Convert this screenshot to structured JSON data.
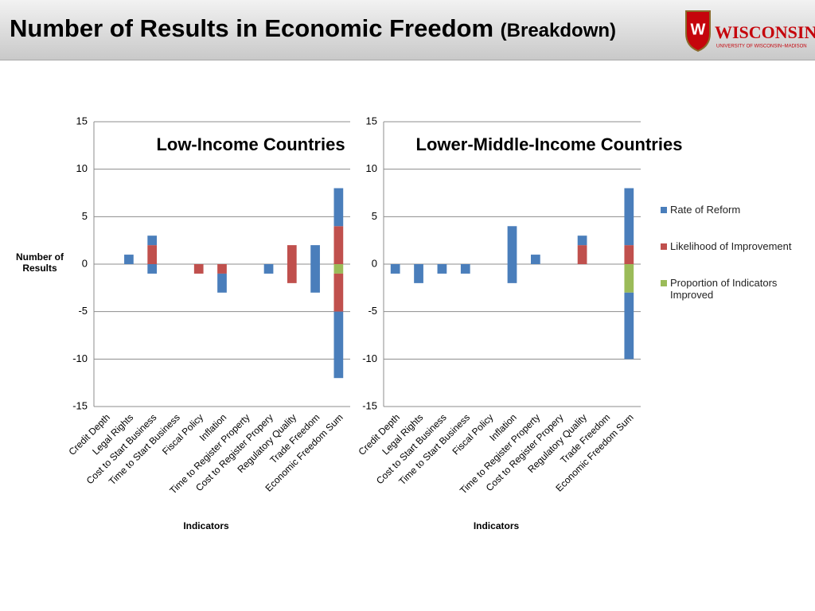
{
  "header": {
    "title": "Number of Results in Economic Freedom",
    "subtitle": "(Breakdown)",
    "logo_text": "WISCONSIN",
    "logo_subtext": "UNIVERSITY OF WISCONSIN–MADISON"
  },
  "chart_data": [
    {
      "type": "bar",
      "stacked": true,
      "title": "Low-Income Countries",
      "x_label": "Indicators",
      "y_label": "Number of Results",
      "categories": [
        "Credit Depth",
        "Legal Rights",
        "Cost to Start Business",
        "Time to Start Business",
        "Fiscal Policy",
        "Inflation",
        "Time to Register Property",
        "Cost to Register Propery",
        "Regulatory Quality",
        "Trade Freedom",
        "Economic Freedom Sum"
      ],
      "series": [
        {
          "name": "Rate of Reform",
          "color": "#4a7ebb",
          "values": [
            0,
            1,
            1,
            0,
            0,
            0,
            0,
            0,
            0,
            2,
            4
          ],
          "negative": [
            0,
            0,
            -1,
            0,
            0,
            -2,
            0,
            -1,
            0,
            -3,
            -7
          ]
        },
        {
          "name": "Likelihood of Improvement",
          "color": "#c0504d",
          "values": [
            0,
            0,
            2,
            0,
            0,
            0,
            0,
            0,
            2,
            0,
            4
          ],
          "negative": [
            0,
            0,
            0,
            0,
            -1,
            -1,
            0,
            0,
            -2,
            0,
            -4
          ]
        },
        {
          "name": "Proportion of Indicators Improved",
          "color": "#9bbb59",
          "values": [
            0,
            0,
            0,
            0,
            0,
            0,
            0,
            0,
            0,
            0,
            0
          ],
          "negative": [
            0,
            0,
            0,
            0,
            0,
            0,
            0,
            0,
            0,
            0,
            -1
          ]
        }
      ],
      "ylim": [
        -15,
        15
      ],
      "yticks": [
        -15,
        -10,
        -5,
        0,
        5,
        10,
        15
      ],
      "grid": true,
      "legend": false
    },
    {
      "type": "bar",
      "stacked": true,
      "title": "Lower-Middle-Income Countries",
      "x_label": "Indicators",
      "categories": [
        "Credit Depth",
        "Legal Rights",
        "Cost to Start Business",
        "Time to Start Business",
        "Fiscal Policy",
        "Inflation",
        "Time to Register Property",
        "Cost to Register Propery",
        "Regulatory Quality",
        "Trade Freedom",
        "Economic Freedom Sum"
      ],
      "series": [
        {
          "name": "Rate of Reform",
          "color": "#4a7ebb",
          "values": [
            0,
            0,
            0,
            0,
            0,
            4,
            1,
            0,
            1,
            0,
            6
          ],
          "negative": [
            -1,
            -2,
            -1,
            -1,
            0,
            -2,
            0,
            0,
            0,
            0,
            -7
          ]
        },
        {
          "name": "Likelihood of Improvement",
          "color": "#c0504d",
          "values": [
            0,
            0,
            0,
            0,
            0,
            0,
            0,
            0,
            2,
            0,
            2
          ],
          "negative": [
            0,
            0,
            0,
            0,
            0,
            0,
            0,
            0,
            0,
            0,
            0
          ]
        },
        {
          "name": "Proportion of Indicators Improved",
          "color": "#9bbb59",
          "values": [
            0,
            0,
            0,
            0,
            0,
            0,
            0,
            0,
            0,
            0,
            0
          ],
          "negative": [
            0,
            0,
            0,
            0,
            0,
            0,
            0,
            0,
            0,
            0,
            -3
          ]
        }
      ],
      "ylim": [
        -15,
        15
      ],
      "yticks": [
        -15,
        -10,
        -5,
        0,
        5,
        10,
        15
      ],
      "grid": true,
      "legend": "right"
    }
  ]
}
